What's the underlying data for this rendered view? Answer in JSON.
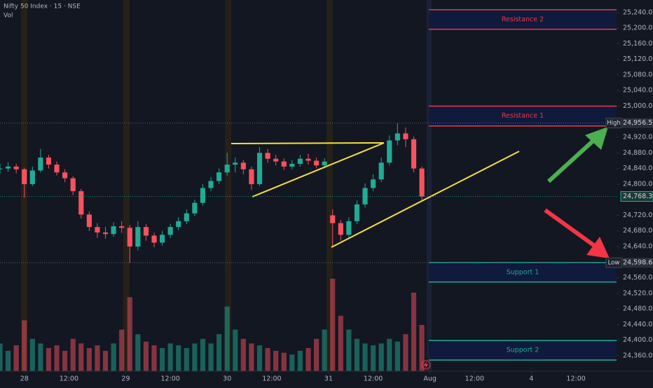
{
  "chart_data": {
    "type": "candlestick",
    "title": "Nifty 50 Index · 15 · NSE",
    "volume_label": "Vol",
    "x": [
      -6,
      -4,
      -2,
      0,
      2,
      4,
      6,
      8,
      10,
      12,
      14,
      16,
      18,
      20,
      22,
      24,
      26,
      28,
      30,
      32,
      34,
      36,
      38,
      40,
      42,
      44,
      46,
      48,
      50,
      52,
      54,
      56,
      58,
      60,
      62,
      64,
      66,
      68,
      70,
      72,
      74,
      76,
      78,
      80,
      82,
      84,
      86,
      88,
      90,
      92,
      94,
      96,
      98
    ],
    "open": [
      24838,
      24840,
      24845,
      24838,
      24800,
      24835,
      24868,
      24850,
      24830,
      24815,
      24782,
      24722,
      24690,
      24676,
      24672,
      24692,
      24688,
      24640,
      24690,
      24668,
      24650,
      24670,
      24690,
      24705,
      24725,
      24752,
      24790,
      24808,
      24830,
      24850,
      24855,
      24838,
      24800,
      24880,
      24865,
      24858,
      24845,
      24852,
      24865,
      24860,
      24848,
      24720,
      24700,
      24670,
      24705,
      24748,
      24790,
      24812,
      24855,
      24912,
      24930,
      24915,
      24840
    ],
    "high": [
      24852,
      24856,
      24852,
      24842,
      24845,
      24890,
      24875,
      24858,
      24838,
      24820,
      24788,
      24730,
      24700,
      24690,
      24702,
      24705,
      24695,
      24705,
      24698,
      24675,
      24680,
      24698,
      24715,
      24735,
      24760,
      24800,
      24818,
      24840,
      24880,
      24868,
      24862,
      24845,
      24895,
      24890,
      24875,
      24866,
      24862,
      24875,
      24878,
      24868,
      24866,
      24735,
      24708,
      24715,
      24758,
      24802,
      24825,
      24868,
      24925,
      24956.5,
      24945,
      24922,
      24845
    ],
    "low": [
      24826,
      24832,
      24828,
      24765,
      24795,
      24830,
      24840,
      24822,
      24805,
      24772,
      24712,
      24680,
      24662,
      24660,
      24665,
      24675,
      24598.6,
      24630,
      24655,
      24638,
      24642,
      24662,
      24682,
      24698,
      24718,
      24745,
      24782,
      24800,
      24822,
      24830,
      24825,
      24785,
      24795,
      24855,
      24848,
      24836,
      24838,
      24845,
      24850,
      24840,
      24840,
      24640,
      24655,
      24662,
      24698,
      24740,
      24782,
      24805,
      24848,
      24900,
      24895,
      24830,
      24758
    ],
    "close": [
      24840,
      24845,
      24838,
      24800,
      24835,
      24868,
      24850,
      24830,
      24815,
      24782,
      24722,
      24690,
      24676,
      24672,
      24692,
      24688,
      24640,
      24690,
      24668,
      24650,
      24670,
      24690,
      24705,
      24725,
      24752,
      24790,
      24808,
      24830,
      24850,
      24855,
      24838,
      24800,
      24880,
      24865,
      24858,
      24845,
      24852,
      24865,
      24860,
      24848,
      24858,
      24700,
      24670,
      24705,
      24748,
      24790,
      24812,
      24855,
      24912,
      24930,
      24915,
      24840,
      24768.35
    ],
    "volume": [
      30,
      22,
      28,
      55,
      35,
      30,
      25,
      28,
      22,
      35,
      30,
      25,
      28,
      22,
      30,
      45,
      80,
      40,
      32,
      28,
      25,
      30,
      28,
      25,
      30,
      35,
      30,
      40,
      70,
      45,
      35,
      30,
      28,
      25,
      22,
      20,
      18,
      22,
      25,
      35,
      45,
      100,
      60,
      45,
      35,
      30,
      28,
      30,
      35,
      32,
      40,
      85,
      50
    ],
    "vlim": [
      0,
      100
    ],
    "up_color": "#22ab94",
    "down_color": "#f7525f",
    "xlim": [
      -6,
      146
    ],
    "ylim": [
      24324,
      25272
    ],
    "xticks": [
      {
        "value": 0,
        "label": "28"
      },
      {
        "value": 11,
        "label": "12:00"
      },
      {
        "value": 25,
        "label": "29"
      },
      {
        "value": 36,
        "label": "12:00"
      },
      {
        "value": 50,
        "label": "30"
      },
      {
        "value": 61,
        "label": "12:00"
      },
      {
        "value": 75,
        "label": "31"
      },
      {
        "value": 86,
        "label": "12:00"
      },
      {
        "value": 100,
        "label": "Aug"
      },
      {
        "value": 111,
        "label": "12:00"
      },
      {
        "value": 125,
        "label": "4"
      },
      {
        "value": 136,
        "label": "12:00"
      }
    ],
    "yticks": [
      {
        "value": 25240,
        "label": "25,240.00"
      },
      {
        "value": 25200,
        "label": "25,200.00"
      },
      {
        "value": 25160,
        "label": "25,160.00"
      },
      {
        "value": 25120,
        "label": "25,120.00"
      },
      {
        "value": 25080,
        "label": "25,080.00"
      },
      {
        "value": 25040,
        "label": "25,040.00"
      },
      {
        "value": 25000,
        "label": "25,000.00"
      },
      {
        "value": 24920,
        "label": "24,920.00"
      },
      {
        "value": 24880,
        "label": "24,880.00"
      },
      {
        "value": 24840,
        "label": "24,840.00"
      },
      {
        "value": 24800,
        "label": "24,800.00"
      },
      {
        "value": 24720,
        "label": "24,720.00"
      },
      {
        "value": 24680,
        "label": "24,680.00"
      },
      {
        "value": 24640,
        "label": "24,640.00"
      },
      {
        "value": 24560,
        "label": "24,560.00"
      },
      {
        "value": 24520,
        "label": "24,520.00"
      },
      {
        "value": 24480,
        "label": "24,480.00"
      },
      {
        "value": 24440,
        "label": "24,440.00"
      },
      {
        "value": 24400,
        "label": "24,400.00"
      },
      {
        "value": 24360,
        "label": "24,360.00"
      }
    ],
    "zones": [
      {
        "label": "Resistance 2",
        "top": 25247,
        "bottom": 25197,
        "color": "#f23645"
      },
      {
        "label": "Resistance 1",
        "top": 25000,
        "bottom": 24949,
        "color": "#f23645"
      },
      {
        "label": "Support 1",
        "top": 24599,
        "bottom": 24549,
        "color": "#22ab94"
      },
      {
        "label": "Support 2",
        "top": 24399,
        "bottom": 24349,
        "color": "#22ab94"
      }
    ],
    "markers": [
      {
        "label": "High",
        "value": 24956.5,
        "value_label": "24,956.50"
      },
      {
        "label": "Low",
        "value": 24598.6,
        "value_label": "24,598.60"
      }
    ],
    "last": {
      "value": 24768.35,
      "value_label": "24,768.35"
    }
  }
}
